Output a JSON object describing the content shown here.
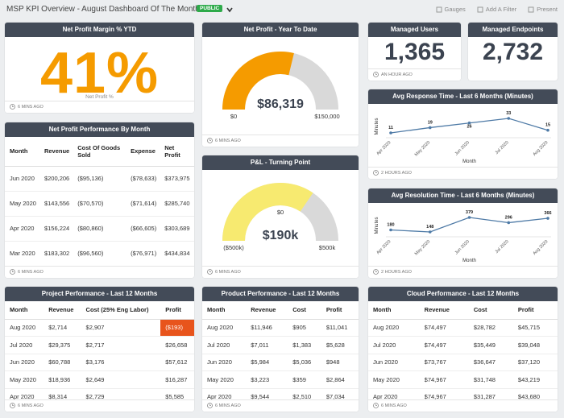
{
  "header": {
    "title": "MSP KPI Overview - August Dashboard Of The Month",
    "badge": "PUBLIC",
    "actions": [
      "Gauges",
      "Add A Filter",
      "Present"
    ]
  },
  "net_profit_margin": {
    "type": "kpi",
    "title": "Net Profit Margin % YTD",
    "value": "41%",
    "color": "#f59b00",
    "caption": "Net Profit %",
    "footer": "6 MINS AGO"
  },
  "net_profit_ytd": {
    "type": "gauge",
    "title": "Net Profit - Year To Date",
    "value": 86319,
    "value_label": "$86,319",
    "min": 0,
    "min_label": "$0",
    "max": 150000,
    "max_label": "$150,000",
    "color": "#f59b00",
    "footer": "6 MINS AGO"
  },
  "managed_users": {
    "type": "kpi",
    "title": "Managed Users",
    "value": "1,365",
    "color": "#3b4350",
    "footer": "AN HOUR AGO"
  },
  "managed_endpoints": {
    "type": "kpi",
    "title": "Managed Endpoints",
    "value": "2,732",
    "color": "#3b4350"
  },
  "avg_response_time": {
    "type": "line",
    "title": "Avg Response Time - Last 6 Months (Minutes)",
    "categories": [
      "Apr 2020",
      "May 2020",
      "Jun 2020",
      "Jul 2020",
      "Aug 2020"
    ],
    "values": [
      11,
      19,
      26,
      33,
      15
    ],
    "y_label": "Minutes",
    "x_label": "Month",
    "color": "#4e7aa6",
    "footer": "2 HOURS AGO"
  },
  "net_profit_performance": {
    "type": "table",
    "title": "Net Profit Performance By Month",
    "columns": [
      "Month",
      "Revenue",
      "Cost Of Goods Sold",
      "Expense",
      "Net Profit"
    ],
    "rows": [
      [
        "Jun 2020",
        "$200,206",
        "($95,136)",
        "($78,633)",
        "$373,975"
      ],
      [
        "May 2020",
        "$143,556",
        "($70,570)",
        "($71,614)",
        "$285,740"
      ],
      [
        "Apr 2020",
        "$156,224",
        "($80,860)",
        "($66,605)",
        "$303,689"
      ],
      [
        "Mar 2020",
        "$183,302",
        "($96,560)",
        "($76,971)",
        "$434,834"
      ]
    ],
    "footer": "6 MINS AGO"
  },
  "pl_turning_point": {
    "type": "gauge",
    "title": "P&L - Turning Point",
    "value": 190000,
    "value_label": "$190k",
    "min": -500000,
    "min_label": "($500k)",
    "max": 500000,
    "max_label": "$500k",
    "mid": 0,
    "mid_label": "$0",
    "color": "#f7ea70",
    "footer": "6 MINS AGO"
  },
  "avg_resolution_time": {
    "type": "line",
    "title": "Avg Resolution Time - Last 6 Months (Minutes)",
    "categories": [
      "Apr 2020",
      "May 2020",
      "Jun 2020",
      "Jul 2020",
      "Aug 2020"
    ],
    "values": [
      180,
      148,
      379,
      296,
      366
    ],
    "y_label": "Minutes",
    "x_label": "Month",
    "color": "#4e7aa6",
    "footer": "2 HOURS AGO"
  },
  "project_performance": {
    "type": "table",
    "title": "Project Performance - Last 12 Months",
    "columns": [
      "Month",
      "Revenue",
      "Cost (25% Eng Labor)",
      "Profit"
    ],
    "rows": [
      [
        "Aug 2020",
        "$2,714",
        "$2,907",
        "($193)"
      ],
      [
        "Jul 2020",
        "$29,375",
        "$2,717",
        "$26,658"
      ],
      [
        "Jun 2020",
        "$60,788",
        "$3,176",
        "$57,612"
      ],
      [
        "May 2020",
        "$18,936",
        "$2,649",
        "$16,287"
      ],
      [
        "Apr 2020",
        "$8,314",
        "$2,729",
        "$5,585"
      ]
    ],
    "footer": "6 MINS AGO"
  },
  "product_performance": {
    "type": "table",
    "title": "Product Performance - Last 12 Months",
    "columns": [
      "Month",
      "Revenue",
      "Cost",
      "Profit"
    ],
    "rows": [
      [
        "Aug 2020",
        "$11,946",
        "$905",
        "$11,041"
      ],
      [
        "Jul 2020",
        "$7,011",
        "$1,383",
        "$5,628"
      ],
      [
        "Jun 2020",
        "$5,984",
        "$5,036",
        "$948"
      ],
      [
        "May 2020",
        "$3,223",
        "$359",
        "$2,864"
      ],
      [
        "Apr 2020",
        "$9,544",
        "$2,510",
        "$7,034"
      ]
    ],
    "footer": "6 MINS AGO"
  },
  "cloud_performance": {
    "type": "table",
    "title": "Cloud Performance - Last 12 Months",
    "columns": [
      "Month",
      "Revenue",
      "Cost",
      "Profit"
    ],
    "rows": [
      [
        "Aug 2020",
        "$74,497",
        "$28,782",
        "$45,715"
      ],
      [
        "Jul 2020",
        "$74,497",
        "$35,449",
        "$39,048"
      ],
      [
        "Jun 2020",
        "$73,767",
        "$36,647",
        "$37,120"
      ],
      [
        "May 2020",
        "$74,967",
        "$31,748",
        "$43,219"
      ],
      [
        "Apr 2020",
        "$74,967",
        "$31,287",
        "$43,680"
      ]
    ],
    "footer": "6 MINS AGO"
  }
}
